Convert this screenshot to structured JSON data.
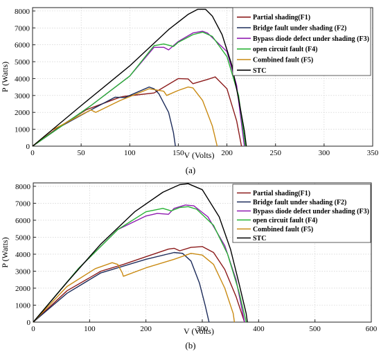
{
  "chart_data": [
    {
      "type": "line",
      "caption": "(a)",
      "xlabel": "V (Volts)",
      "ylabel": "P (Watts)",
      "xlim": [
        0,
        350
      ],
      "ylim": [
        0,
        8200
      ],
      "xticks": [
        0,
        50,
        100,
        150,
        200,
        250,
        300,
        350
      ],
      "yticks": [
        0,
        1000,
        2000,
        3000,
        4000,
        5000,
        6000,
        7000,
        8000
      ],
      "grid": true,
      "legend_position": "top-right",
      "series": [
        {
          "name": "Partial shading(F1)",
          "color": "#8b1a1a",
          "points": [
            [
              0,
              0
            ],
            [
              25,
              1050
            ],
            [
              55,
              2150
            ],
            [
              90,
              2900
            ],
            [
              95,
              2950
            ],
            [
              125,
              3150
            ],
            [
              150,
              4000
            ],
            [
              160,
              3980
            ],
            [
              165,
              3700
            ],
            [
              180,
              3950
            ],
            [
              188,
              4100
            ],
            [
              200,
              3400
            ],
            [
              210,
              1500
            ],
            [
              215,
              0
            ]
          ]
        },
        {
          "name": "Bridge fault under shading (F2)",
          "color": "#1c2b5a",
          "points": [
            [
              0,
              0
            ],
            [
              30,
              1200
            ],
            [
              60,
              2150
            ],
            [
              85,
              2900
            ],
            [
              95,
              2880
            ],
            [
              120,
              3500
            ],
            [
              125,
              3400
            ],
            [
              130,
              3100
            ],
            [
              140,
              2000
            ],
            [
              145,
              800
            ],
            [
              147,
              0
            ]
          ]
        },
        {
          "name": "Bypass diode defect under shading (F3)",
          "color": "#8e1ab0",
          "points": [
            [
              0,
              0
            ],
            [
              60,
              2400
            ],
            [
              100,
              4150
            ],
            [
              125,
              5850
            ],
            [
              135,
              5850
            ],
            [
              140,
              5700
            ],
            [
              150,
              6200
            ],
            [
              165,
              6700
            ],
            [
              175,
              6800
            ],
            [
              180,
              6700
            ],
            [
              200,
              5600
            ],
            [
              210,
              3600
            ],
            [
              218,
              0
            ]
          ]
        },
        {
          "name": "open circuit fault (F4)",
          "color": "#27b234",
          "points": [
            [
              0,
              0
            ],
            [
              60,
              2400
            ],
            [
              100,
              4150
            ],
            [
              125,
              5950
            ],
            [
              135,
              6050
            ],
            [
              145,
              5900
            ],
            [
              150,
              6150
            ],
            [
              165,
              6600
            ],
            [
              175,
              6750
            ],
            [
              185,
              6500
            ],
            [
              200,
              5300
            ],
            [
              212,
              3000
            ],
            [
              219,
              0
            ]
          ]
        },
        {
          "name": "Combined fault (F5)",
          "color": "#c98a12",
          "points": [
            [
              0,
              0
            ],
            [
              20,
              950
            ],
            [
              45,
              1700
            ],
            [
              60,
              2150
            ],
            [
              65,
              2000
            ],
            [
              90,
              2700
            ],
            [
              120,
              3400
            ],
            [
              135,
              3250
            ],
            [
              138,
              3000
            ],
            [
              150,
              3300
            ],
            [
              160,
              3500
            ],
            [
              165,
              3450
            ],
            [
              175,
              2700
            ],
            [
              185,
              1200
            ],
            [
              190,
              0
            ]
          ]
        },
        {
          "name": "STC",
          "color": "#000000",
          "points": [
            [
              0,
              0
            ],
            [
              50,
              2400
            ],
            [
              100,
              4750
            ],
            [
              140,
              6900
            ],
            [
              160,
              7800
            ],
            [
              170,
              8100
            ],
            [
              178,
              8100
            ],
            [
              185,
              7700
            ],
            [
              195,
              6600
            ],
            [
              205,
              4800
            ],
            [
              212,
              2800
            ],
            [
              218,
              900
            ],
            [
              220,
              0
            ]
          ]
        }
      ]
    },
    {
      "type": "line",
      "caption": "(b)",
      "xlabel": "V (Volts)",
      "ylabel": "P (Watts)",
      "xlim": [
        0,
        600
      ],
      "ylim": [
        0,
        8200
      ],
      "xticks": [
        0,
        100,
        200,
        300,
        400,
        500,
        600
      ],
      "yticks": [
        0,
        1000,
        2000,
        3000,
        4000,
        5000,
        6000,
        7000,
        8000
      ],
      "grid": true,
      "legend_position": "top-right",
      "series": [
        {
          "name": "Partial shading(F1)",
          "color": "#8b1a1a",
          "points": [
            [
              0,
              0
            ],
            [
              60,
              1850
            ],
            [
              120,
              3000
            ],
            [
              160,
              3400
            ],
            [
              200,
              3850
            ],
            [
              240,
              4300
            ],
            [
              250,
              4350
            ],
            [
              260,
              4200
            ],
            [
              280,
              4400
            ],
            [
              300,
              4450
            ],
            [
              320,
              4100
            ],
            [
              340,
              3100
            ],
            [
              360,
              1500
            ],
            [
              375,
              0
            ]
          ]
        },
        {
          "name": "Bridge fault under shading (F2)",
          "color": "#1c2b5a",
          "points": [
            [
              0,
              0
            ],
            [
              60,
              1700
            ],
            [
              120,
              2900
            ],
            [
              200,
              3700
            ],
            [
              250,
              4100
            ],
            [
              265,
              4050
            ],
            [
              280,
              3600
            ],
            [
              295,
              2300
            ],
            [
              305,
              1000
            ],
            [
              312,
              0
            ]
          ]
        },
        {
          "name": "Bypass diode defect under shading (F3)",
          "color": "#8e1ab0",
          "points": [
            [
              0,
              0
            ],
            [
              80,
              3150
            ],
            [
              150,
              5450
            ],
            [
              200,
              6250
            ],
            [
              220,
              6400
            ],
            [
              240,
              6350
            ],
            [
              250,
              6700
            ],
            [
              270,
              6900
            ],
            [
              285,
              6850
            ],
            [
              310,
              6200
            ],
            [
              340,
              4500
            ],
            [
              360,
              2500
            ],
            [
              375,
              0
            ]
          ]
        },
        {
          "name": "open circuit fault (F4)",
          "color": "#27b234",
          "points": [
            [
              0,
              0
            ],
            [
              80,
              3150
            ],
            [
              150,
              5450
            ],
            [
              200,
              6500
            ],
            [
              230,
              6700
            ],
            [
              245,
              6550
            ],
            [
              260,
              6750
            ],
            [
              275,
              6800
            ],
            [
              290,
              6650
            ],
            [
              320,
              5700
            ],
            [
              345,
              4000
            ],
            [
              365,
              1800
            ],
            [
              378,
              0
            ]
          ]
        },
        {
          "name": "Combined fault (F5)",
          "color": "#c98a12",
          "points": [
            [
              0,
              0
            ],
            [
              60,
              2100
            ],
            [
              110,
              3150
            ],
            [
              140,
              3500
            ],
            [
              150,
              3400
            ],
            [
              158,
              2900
            ],
            [
              160,
              2700
            ],
            [
              200,
              3200
            ],
            [
              250,
              3700
            ],
            [
              280,
              4050
            ],
            [
              300,
              3950
            ],
            [
              320,
              3400
            ],
            [
              340,
              2000
            ],
            [
              355,
              500
            ],
            [
              357,
              0
            ]
          ]
        },
        {
          "name": "STC",
          "color": "#000000",
          "points": [
            [
              0,
              0
            ],
            [
              60,
              2350
            ],
            [
              120,
              4600
            ],
            [
              180,
              6500
            ],
            [
              230,
              7650
            ],
            [
              260,
              8100
            ],
            [
              275,
              8150
            ],
            [
              300,
              7800
            ],
            [
              330,
              6200
            ],
            [
              350,
              4300
            ],
            [
              365,
              2300
            ],
            [
              378,
              500
            ],
            [
              380,
              0
            ]
          ]
        }
      ]
    }
  ]
}
